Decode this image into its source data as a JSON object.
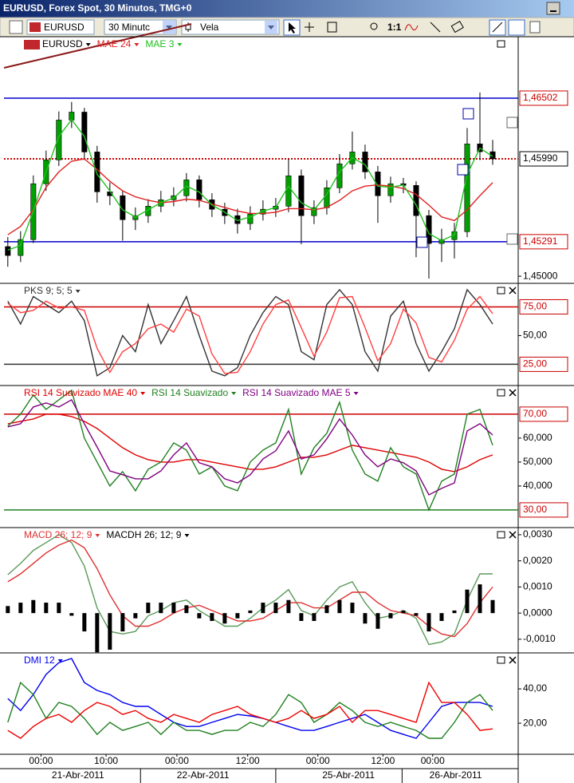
{
  "window": {
    "title": "EURUSD, Forex Spot, 30 Minutos, TMG+0"
  },
  "toolbar": {
    "symbol": "EURUSD",
    "interval": "30 Minutc",
    "chart_style": "Vela",
    "zoom": "1:1"
  },
  "time_axis": {
    "xlim": [
      -0.3,
      40
    ],
    "xticks": [
      {
        "value": 2.6,
        "label": "00:00"
      },
      {
        "value": 7.7,
        "label": "10:00"
      },
      {
        "value": 13.25,
        "label": "00:00"
      },
      {
        "value": 18.8,
        "label": "12:00"
      },
      {
        "value": 24.3,
        "label": "00:00"
      },
      {
        "value": 29.4,
        "label": "12:00"
      },
      {
        "value": 33.3,
        "label": "00:00"
      }
    ],
    "date_ticks": [
      {
        "value": 5.5,
        "label": "21-Abr-2011"
      },
      {
        "value": 15.3,
        "label": "22-Abr-2011"
      },
      {
        "value": 26.7,
        "label": "25-Abr-2011"
      },
      {
        "value": 35.1,
        "label": "26-Abr-2011"
      }
    ]
  },
  "chart_data": [
    {
      "type": "candlestick",
      "symbol": "EURUSD",
      "x": [
        0,
        1,
        2,
        3,
        4,
        5,
        6,
        7,
        8,
        9,
        10,
        11,
        12,
        13,
        14,
        15,
        16,
        17,
        18,
        19,
        20,
        21,
        22,
        23,
        24,
        25,
        26,
        27,
        28,
        29,
        30,
        31,
        32,
        33,
        34,
        35,
        36,
        37,
        38
      ],
      "xlim": [
        -0.3,
        40
      ],
      "open": [
        1.4525,
        1.45175,
        1.45309,
        1.4578,
        1.45981,
        1.46317,
        1.46384,
        1.46048,
        1.45712,
        1.45679,
        1.45477,
        1.45511,
        1.45591,
        1.45645,
        1.45679,
        1.45813,
        1.45645,
        1.45565,
        1.45511,
        1.45444,
        1.45524,
        1.45565,
        1.45591,
        1.45847,
        1.45511,
        1.45578,
        1.45746,
        1.45948,
        1.46048,
        1.4588,
        1.45679,
        1.4578,
        1.45766,
        1.45511,
        1.45276,
        1.45309,
        1.45376,
        1.46116,
        1.4605
      ],
      "high": [
        1.4533,
        1.4538,
        1.4585,
        1.4606,
        1.4639,
        1.4647,
        1.4642,
        1.461,
        1.4579,
        1.4572,
        1.4558,
        1.4565,
        1.4572,
        1.4575,
        1.4587,
        1.4585,
        1.457,
        1.4562,
        1.4557,
        1.4559,
        1.4564,
        1.4566,
        1.4599,
        1.459,
        1.4564,
        1.4581,
        1.4603,
        1.4622,
        1.4611,
        1.4593,
        1.4584,
        1.4583,
        1.458,
        1.4556,
        1.454,
        1.4545,
        1.4625,
        1.4655,
        1.4615
      ],
      "low": [
        1.4508,
        1.4512,
        1.4528,
        1.4572,
        1.4593,
        1.4625,
        1.4598,
        1.4562,
        1.456,
        1.453,
        1.4539,
        1.4545,
        1.4554,
        1.4559,
        1.4563,
        1.4558,
        1.455,
        1.4544,
        1.4536,
        1.4539,
        1.4547,
        1.455,
        1.4554,
        1.4527,
        1.4544,
        1.4552,
        1.457,
        1.459,
        1.4582,
        1.4545,
        1.4562,
        1.457,
        1.4516,
        1.4498,
        1.4512,
        1.4515,
        1.4533,
        1.4598,
        1.4594
      ],
      "close": [
        1.45175,
        1.45309,
        1.4578,
        1.45981,
        1.46317,
        1.46384,
        1.46048,
        1.45712,
        1.45679,
        1.45477,
        1.45511,
        1.45591,
        1.45645,
        1.45679,
        1.45813,
        1.45645,
        1.45565,
        1.45511,
        1.45444,
        1.45524,
        1.45565,
        1.45591,
        1.45847,
        1.45511,
        1.45578,
        1.45746,
        1.45948,
        1.46048,
        1.4588,
        1.45679,
        1.4578,
        1.45766,
        1.45511,
        1.45276,
        1.45309,
        1.45376,
        1.46116,
        1.4605,
        1.4599
      ],
      "up_color": "#00a000",
      "down_color": "#000000",
      "series": [
        {
          "name": "MAE 24",
          "color": "#e02020",
          "values": [
            1.4535,
            1.4542,
            1.4556,
            1.4575,
            1.4588,
            1.4597,
            1.4599,
            1.459,
            1.458,
            1.4572,
            1.4567,
            1.4564,
            1.4562,
            1.4563,
            1.4565,
            1.4564,
            1.4561,
            1.4558,
            1.4555,
            1.4553,
            1.4553,
            1.4554,
            1.4557,
            1.4557,
            1.4556,
            1.4558,
            1.4564,
            1.4572,
            1.4576,
            1.4577,
            1.4576,
            1.4574,
            1.4569,
            1.456,
            1.455,
            1.4547,
            1.4556,
            1.4568,
            1.4579
          ]
        },
        {
          "name": "MAE 3",
          "color": "#20c020",
          "values": [
            1.4522,
            1.4526,
            1.4555,
            1.4588,
            1.4618,
            1.4632,
            1.4618,
            1.4586,
            1.4572,
            1.4556,
            1.455,
            1.4556,
            1.4562,
            1.4566,
            1.4576,
            1.4571,
            1.456,
            1.4554,
            1.4547,
            1.455,
            1.4555,
            1.4558,
            1.4576,
            1.4562,
            1.4556,
            1.4569,
            1.4588,
            1.46,
            1.4594,
            1.4576,
            1.4575,
            1.4577,
            1.456,
            1.4536,
            1.453,
            1.4535,
            1.4586,
            1.4608,
            1.4601
          ]
        }
      ],
      "ylim": [
        1.4494,
        1.4702
      ],
      "yticks": [
        {
          "value": 1.45,
          "label": "1,45000"
        }
      ],
      "hlines": [
        {
          "value": 1.46502,
          "label": "1,46502",
          "color": "#0000cc",
          "label_color": "#cc0000",
          "style": "solid"
        },
        {
          "value": 1.45291,
          "label": "1,45291",
          "color": "#0000cc",
          "label_color": "#cc0000",
          "style": "solid"
        },
        {
          "value": 1.4599,
          "label": "1,45990",
          "color": "#cc0000",
          "label_color": "#000000",
          "style": "dotted"
        }
      ]
    },
    {
      "type": "line",
      "x": [
        0,
        1,
        2,
        3,
        4,
        5,
        6,
        7,
        8,
        9,
        10,
        11,
        12,
        13,
        14,
        15,
        16,
        17,
        18,
        19,
        20,
        21,
        22,
        23,
        24,
        25,
        26,
        27,
        28,
        29,
        30,
        31,
        32,
        33,
        34,
        35,
        36,
        37,
        38
      ],
      "xlim": [
        -0.3,
        40
      ],
      "ylim": [
        10,
        92
      ],
      "yticks": [
        {
          "value": 50,
          "label": "50,00"
        }
      ],
      "hlines": [
        {
          "value": 75,
          "label": "75,00",
          "color": "#cc0000",
          "label_color": "#cc0000",
          "style": "solid"
        },
        {
          "value": 25,
          "label": "25,00",
          "color": "#333333",
          "label_color": "#cc0000",
          "style": "solid"
        }
      ],
      "series": [
        {
          "name": "PKS 9; 5; 5",
          "color": "#333333",
          "values": [
            80,
            60,
            84,
            77,
            70,
            80,
            63,
            15,
            22,
            50,
            36,
            77,
            43,
            63,
            84,
            50,
            19,
            15,
            22,
            50,
            70,
            84,
            77,
            36,
            29,
            77,
            90,
            77,
            36,
            19,
            67,
            80,
            43,
            19,
            36,
            56,
            90,
            77,
            60
          ]
        },
        {
          "color": "#ff4040",
          "values": [
            78,
            70,
            72,
            80,
            74,
            75,
            72,
            39,
            18,
            36,
            43,
            56,
            60,
            53,
            73,
            67,
            34,
            17,
            18,
            36,
            60,
            77,
            81,
            57,
            32,
            53,
            83,
            84,
            57,
            28,
            43,
            73,
            61,
            31,
            27,
            46,
            73,
            84,
            69
          ]
        }
      ]
    },
    {
      "type": "line",
      "x": [
        0,
        1,
        2,
        3,
        4,
        5,
        6,
        7,
        8,
        9,
        10,
        11,
        12,
        13,
        14,
        15,
        16,
        17,
        18,
        19,
        20,
        21,
        22,
        23,
        24,
        25,
        26,
        27,
        28,
        29,
        30,
        31,
        32,
        33,
        34,
        35,
        36,
        37,
        38
      ],
      "xlim": [
        -0.3,
        40
      ],
      "ylim": [
        24.3,
        80.3
      ],
      "yticks": [
        {
          "value": 60,
          "label": "60,000"
        },
        {
          "value": 50,
          "label": "50,000"
        },
        {
          "value": 40,
          "label": "40,000"
        }
      ],
      "hlines": [
        {
          "value": 70,
          "label": "70,00",
          "color": "#cc0000",
          "label_color": "#cc0000",
          "style": "solid"
        },
        {
          "value": 30,
          "label": "30,00",
          "color": "#208020",
          "label_color": "#cc0000",
          "style": "solid"
        }
      ],
      "series": [
        {
          "name": "RSI 14 Suavizado MAE 40",
          "color": "#e00000",
          "values": [
            66,
            67,
            68,
            70,
            70,
            69,
            67,
            64,
            60,
            56,
            53,
            51,
            50,
            50,
            51,
            51,
            50,
            49,
            48,
            47,
            47,
            48,
            50,
            52,
            52,
            53,
            55,
            57,
            56,
            55,
            54,
            53,
            52,
            50,
            47,
            46,
            48,
            51,
            53
          ]
        },
        {
          "name": "RSI 14 Suavizado",
          "color": "#208020",
          "values": [
            65,
            70,
            78,
            72,
            76,
            80,
            60,
            50,
            40,
            46,
            38,
            47,
            50,
            58,
            55,
            45,
            48,
            40,
            38,
            50,
            55,
            58,
            72,
            45,
            56,
            62,
            75,
            55,
            45,
            42,
            56,
            48,
            45,
            30,
            42,
            45,
            70,
            72,
            57
          ]
        },
        {
          "name": "RSI 14 Suavizado MAE 5",
          "color": "#800080",
          "values": [
            64.7,
            66,
            73,
            74.7,
            73,
            76,
            66,
            56.3,
            46.3,
            44.7,
            43,
            43,
            46.3,
            53,
            58,
            49.7,
            48,
            43,
            41.3,
            44.7,
            51.3,
            54.7,
            63,
            51.3,
            53,
            59.7,
            68,
            61.3,
            53,
            48,
            51.3,
            49.7,
            46.3,
            36.3,
            39,
            41.3,
            63,
            66,
            61.3
          ]
        }
      ]
    },
    {
      "type": "line",
      "x": [
        0,
        1,
        2,
        3,
        4,
        5,
        6,
        7,
        8,
        9,
        10,
        11,
        12,
        13,
        14,
        15,
        16,
        17,
        18,
        19,
        20,
        21,
        22,
        23,
        24,
        25,
        26,
        27,
        28,
        29,
        30,
        31,
        32,
        33,
        34,
        35,
        36,
        37,
        38
      ],
      "xlim": [
        -0.3,
        40
      ],
      "ylim": [
        -0.00137,
        0.00312
      ],
      "yticks": [
        {
          "value": 0.003,
          "label": "0,0030"
        },
        {
          "value": 0.002,
          "label": "0,0020"
        },
        {
          "value": 0.001,
          "label": "0,0010"
        },
        {
          "value": 0,
          "label": "0,0000"
        },
        {
          "value": -0.001,
          "label": "-0,0010"
        }
      ],
      "series": [
        {
          "color": "#5a9a5a",
          "values": [
            0.00147,
            0.0019,
            0.0024,
            0.0027,
            0.003,
            0.0027,
            0.0018,
            0.0002,
            -0.0007,
            -0.0008,
            -0.0007,
            -0.0001,
            0.0001,
            0.0004,
            0.0005,
            0.0001,
            -0.0002,
            -0.0005,
            -0.0005,
            -0.0002,
            0.0002,
            0.0005,
            0.0009,
            0.0001,
            -0.0001,
            0.0005,
            0.001,
            0.0012,
            0.0004,
            -0.0002,
            -0.0001,
            0.0001,
            -0.0002,
            -0.0012,
            -0.0011,
            -0.0008,
            0.0005,
            0.0015,
            0.0015
          ]
        },
        {
          "name": "MACD 26; 12; 9",
          "color": "#e03030",
          "values": [
            0.0012,
            0.0015,
            0.0019,
            0.0023,
            0.0026,
            0.0028,
            0.0025,
            0.0017,
            0.0007,
            -0.0001,
            -0.0005,
            -0.0005,
            -0.0003,
            0,
            0.0002,
            0.0003,
            0.0001,
            -0.0001,
            -0.0003,
            -0.0003,
            -0.0002,
            0.0001,
            0.0004,
            0.0004,
            0.0002,
            0.0002,
            0.0005,
            0.0008,
            0.0008,
            0.0004,
            0.0001,
            0,
            -0.0001,
            -0.0005,
            -0.0008,
            -0.0009,
            -0.0004,
            0.0004,
            0.001
          ]
        },
        {
          "name": "MACDH 26; 12; 9",
          "color": "#000000",
          "style": "histogram",
          "values": [
            0.00027,
            0.0004,
            0.0005,
            0.0004,
            0.0004,
            -0.0001,
            -0.0007,
            -0.0015,
            -0.0014,
            -0.0007,
            -0.0002,
            0.0004,
            0.0004,
            0.0004,
            0.0003,
            -0.0002,
            -0.0003,
            -0.0004,
            -0.0002,
            0.0001,
            0.0004,
            0.0004,
            0.0005,
            -0.0003,
            -0.0003,
            0.0003,
            0.0005,
            0.0004,
            -0.0004,
            -0.0006,
            -0.0002,
            0.0001,
            -0.0001,
            -0.0007,
            -0.0003,
            0.0001,
            0.0009,
            0.0011,
            0.0005
          ]
        }
      ]
    },
    {
      "type": "line",
      "x": [
        0,
        1,
        2,
        3,
        4,
        5,
        6,
        7,
        8,
        9,
        10,
        11,
        12,
        13,
        14,
        15,
        16,
        17,
        18,
        19,
        20,
        21,
        22,
        23,
        24,
        25,
        26,
        27,
        28,
        29,
        30,
        31,
        32,
        33,
        34,
        35,
        36,
        37,
        38
      ],
      "xlim": [
        -0.3,
        40
      ],
      "ylim": [
        1.9,
        59.1
      ],
      "yticks": [
        {
          "value": 40,
          "label": "40,00"
        },
        {
          "value": 20,
          "label": "20,00"
        }
      ],
      "series": [
        {
          "name": "DMI 12",
          "color": "#0000ee",
          "values": [
            34.4,
            27.4,
            36.7,
            48.4,
            55.3,
            57.7,
            43.7,
            39.1,
            36.7,
            32.1,
            29.8,
            29.8,
            25.1,
            20.5,
            18.1,
            18.1,
            20.5,
            22.8,
            25.1,
            24.2,
            22.8,
            20.5,
            18.1,
            15.8,
            15.8,
            18.1,
            20.5,
            22.8,
            25.1,
            20.5,
            15.8,
            13.5,
            11.2,
            20.5,
            29.8,
            32.1,
            32.1,
            32.1,
            29.8
          ]
        },
        {
          "color": "#208020",
          "values": [
            20.5,
            43.7,
            36.7,
            22.8,
            32.1,
            29.8,
            22.8,
            13.5,
            20.5,
            15.8,
            18.1,
            20.5,
            13.5,
            20.5,
            15.8,
            15.8,
            13.5,
            15.8,
            15.8,
            20.5,
            18.1,
            25.1,
            36.7,
            32.1,
            20.5,
            25.1,
            32.1,
            27.4,
            20.5,
            18.1,
            20.5,
            18.1,
            15.8,
            11.2,
            11.2,
            20.5,
            32.1,
            36.7,
            27.4
          ]
        },
        {
          "color": "#ee0000",
          "values": [
            15.8,
            11.2,
            18.1,
            22.8,
            25.1,
            20.5,
            27.4,
            32.1,
            29.8,
            25.1,
            27.4,
            22.8,
            20.5,
            25.1,
            22.8,
            20.5,
            25.1,
            27.4,
            29.8,
            25.1,
            22.8,
            20.5,
            22.8,
            27.4,
            22.8,
            25.1,
            29.8,
            20.5,
            27.4,
            27.4,
            25.1,
            22.8,
            20.5,
            43.7,
            32.1,
            32.1,
            25.1,
            15.8,
            16.7
          ]
        }
      ]
    }
  ]
}
